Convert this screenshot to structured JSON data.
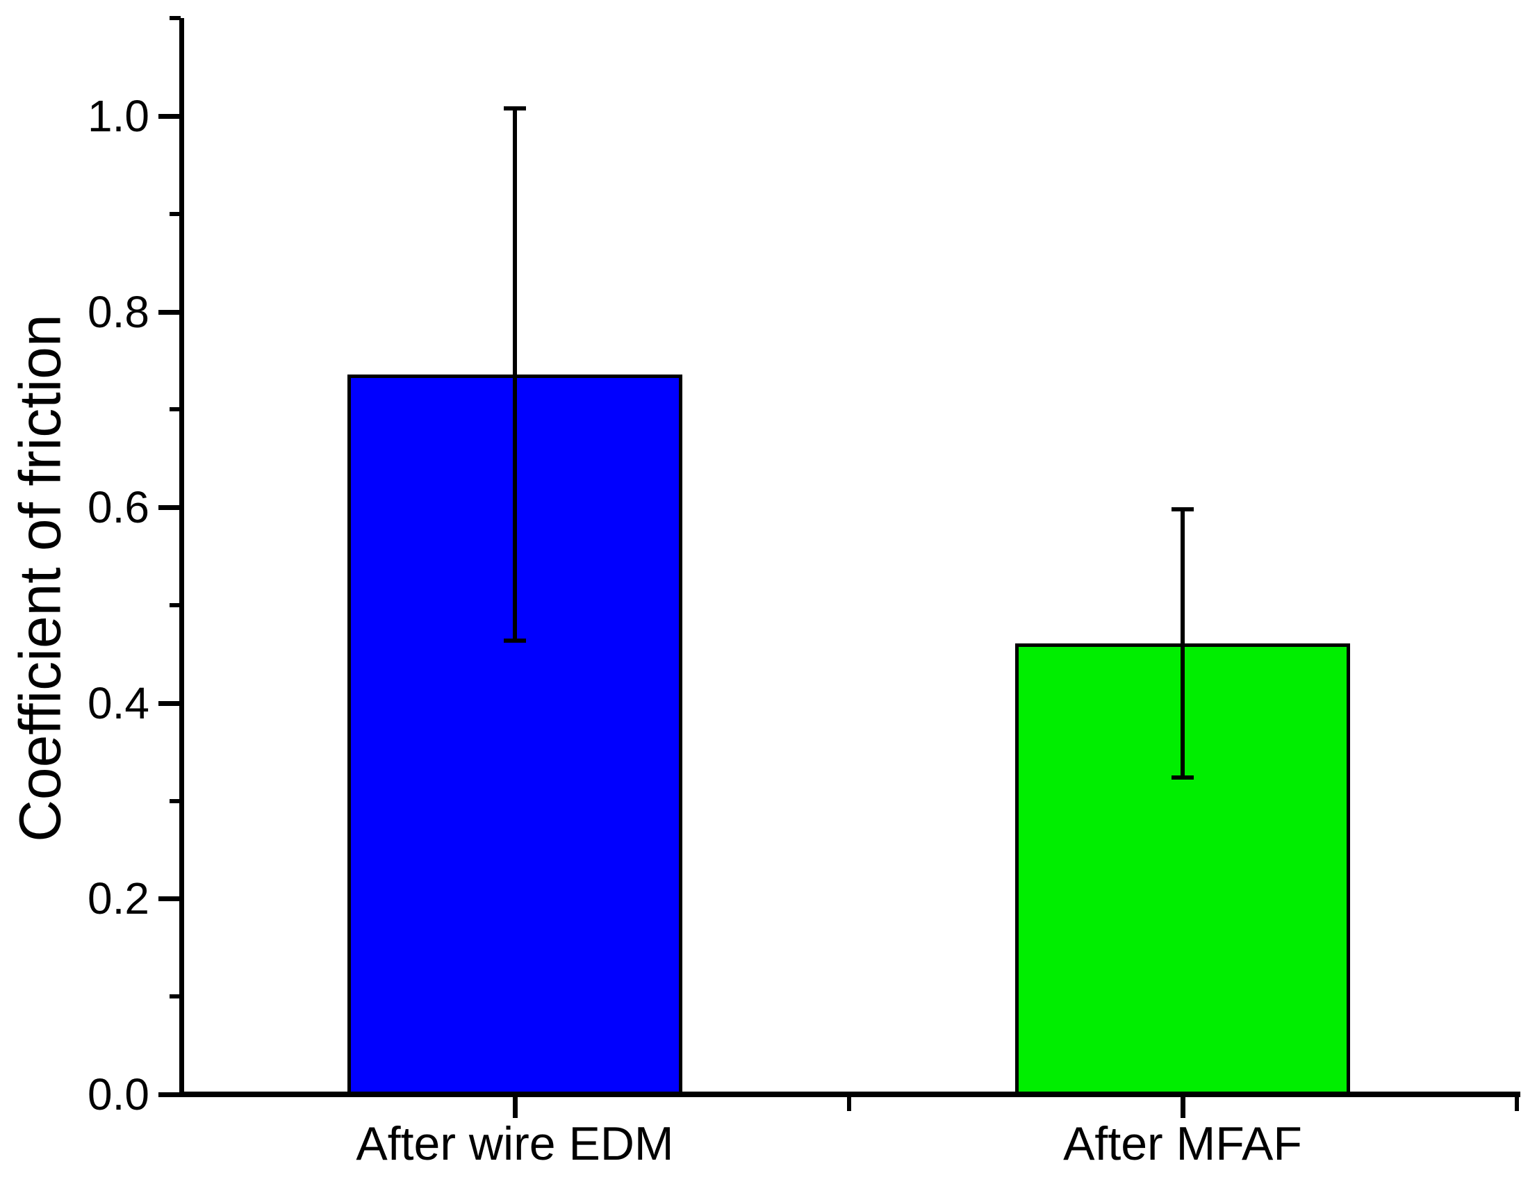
{
  "page": {
    "background": "#FFFFFF"
  },
  "chart_data": {
    "type": "bar",
    "title": "",
    "xlabel": "",
    "ylabel": "Coefficient of friction",
    "categories": [
      "After wire EDM",
      "After MFAF"
    ],
    "values": [
      0.736,
      0.461
    ],
    "errors": [
      0.272,
      0.137
    ],
    "bar_colors": [
      "#0000FF",
      "#00EE00"
    ],
    "bar_border_color": "#000000",
    "axis_color": "#000000",
    "ylim": [
      0.0,
      1.1
    ],
    "ytick_values": [
      0.0,
      0.2,
      0.4,
      0.6,
      0.8,
      1.0
    ],
    "ytick_labels": [
      "0.0",
      "0.2",
      "0.4",
      "0.6",
      "0.8",
      "1.0"
    ],
    "ytick_minor_values": [
      0.1,
      0.3,
      0.5,
      0.7,
      0.9,
      1.1
    ],
    "grid": false,
    "legend": "none",
    "error_bar_style": "symmetric-caps"
  }
}
